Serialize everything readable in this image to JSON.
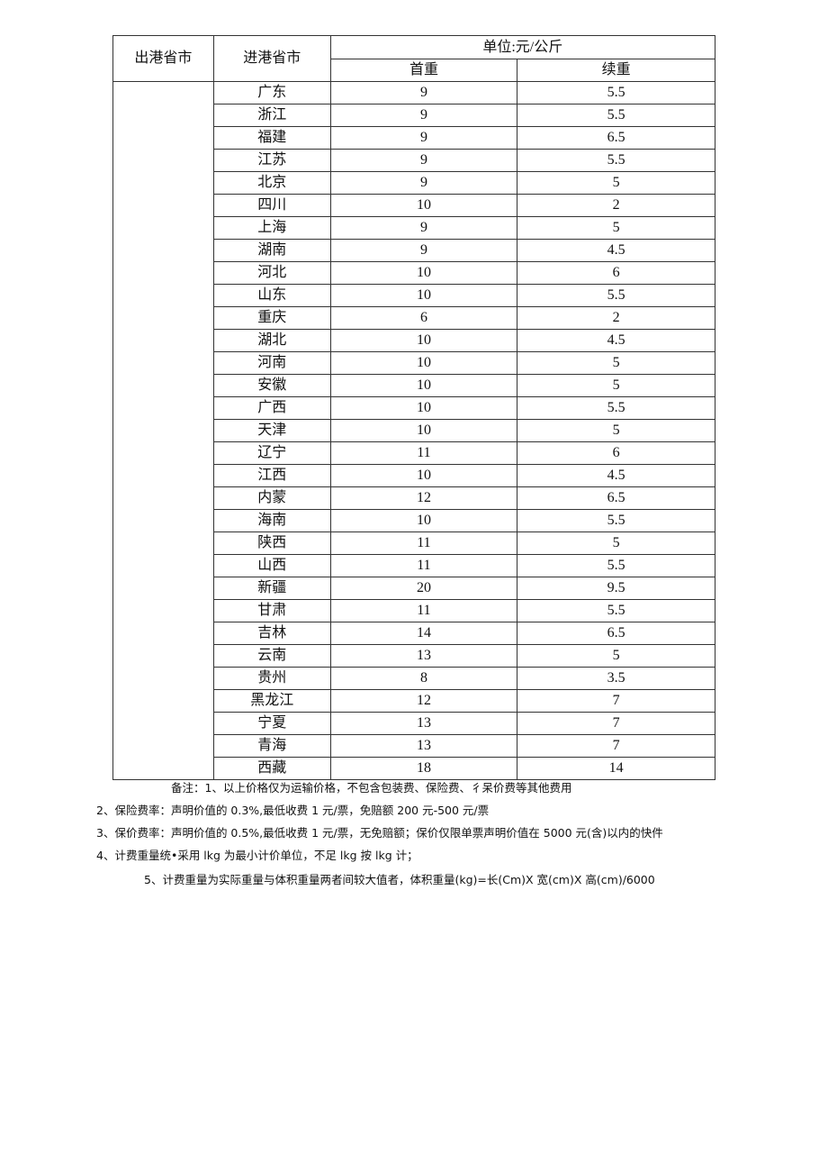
{
  "headers": {
    "origin": "出港省市",
    "destination": "进港省市",
    "unit": "单位:元/公斤",
    "first_weight": "首重",
    "additional_weight": "续重"
  },
  "rows": [
    [
      "广东",
      "9",
      "5.5"
    ],
    [
      "浙江",
      "9",
      "5.5"
    ],
    [
      "福建",
      "9",
      "6.5"
    ],
    [
      "江苏",
      "9",
      "5.5"
    ],
    [
      "北京",
      "9",
      "5"
    ],
    [
      "四川",
      "10",
      "2"
    ],
    [
      "上海",
      "9",
      "5"
    ],
    [
      "湖南",
      "9",
      "4.5"
    ],
    [
      "河北",
      "10",
      "6"
    ],
    [
      "山东",
      "10",
      "5.5"
    ],
    [
      "重庆",
      "6",
      "2"
    ],
    [
      "湖北",
      "10",
      "4.5"
    ],
    [
      "河南",
      "10",
      "5"
    ],
    [
      "安徽",
      "10",
      "5"
    ],
    [
      "广西",
      "10",
      "5.5"
    ],
    [
      "天津",
      "10",
      "5"
    ],
    [
      "辽宁",
      "11",
      "6"
    ],
    [
      "江西",
      "10",
      "4.5"
    ],
    [
      "内蒙",
      "12",
      "6.5"
    ],
    [
      "海南",
      "10",
      "5.5"
    ],
    [
      "陕西",
      "11",
      "5"
    ],
    [
      "山西",
      "11",
      "5.5"
    ],
    [
      "新疆",
      "20",
      "9.5"
    ],
    [
      "甘肃",
      "11",
      "5.5"
    ],
    [
      "吉林",
      "14",
      "6.5"
    ],
    [
      "云南",
      "13",
      "5"
    ],
    [
      "贵州",
      "8",
      "3.5"
    ],
    [
      "黑龙江",
      "12",
      "7"
    ],
    [
      "宁夏",
      "13",
      "7"
    ],
    [
      "青海",
      "13",
      "7"
    ],
    [
      "西藏",
      "18",
      "14"
    ]
  ],
  "notes": [
    "备注：1、以上价格仅为运输价格，不包含包装费、保险费、彳呆价费等其他费用",
    "2、保险费率：声明价值的 0.3%,最低收费 1 元/票，免赔额 200 元-500 元/票",
    "3、保价费率：声明价值的 0.5%,最低收费 1 元/票，无免赔额；保价仅限单票声明价值在 5000 元(含)以内的快件",
    "4、计费重量统•采用 lkg 为最小计价单位，不足 lkg 按 lkg 计；",
    "5、计费重量为实际重量与体积重量两者间较大值者，体积重量(kg)=长(Cm)X 宽(cm)X 高(cm)/6000"
  ]
}
